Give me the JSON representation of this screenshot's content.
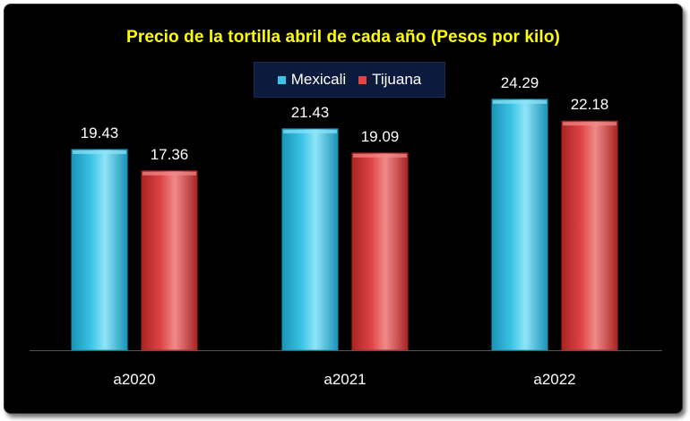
{
  "chart_data": {
    "type": "bar",
    "title": "Precio de la tortilla abril de cada año (Pesos por kilo)",
    "categories": [
      "a2020",
      "a2021",
      "a2022"
    ],
    "series": [
      {
        "name": "Mexicali",
        "values": [
          19.43,
          21.43,
          24.29
        ]
      },
      {
        "name": "Tijuana",
        "values": [
          17.36,
          19.09,
          22.18
        ]
      }
    ],
    "value_labels": [
      [
        "19.43",
        "21.43",
        "24.29"
      ],
      [
        "17.36",
        "19.09",
        "22.18"
      ]
    ],
    "xlabel": "",
    "ylabel": "",
    "ylim": [
      0,
      30
    ],
    "grid": false,
    "legend_position": "top-center"
  },
  "colors": {
    "background": "#000000",
    "title": "#ffff00",
    "legend_background": "#0c1b3d",
    "series": [
      "#3cc3e6",
      "#e04444"
    ],
    "series_light": [
      "#8fe4f8",
      "#f08a8a"
    ],
    "series_dark": [
      "#1a93b8",
      "#a82424"
    ],
    "axis": "#555555",
    "text": "#ffffff"
  }
}
